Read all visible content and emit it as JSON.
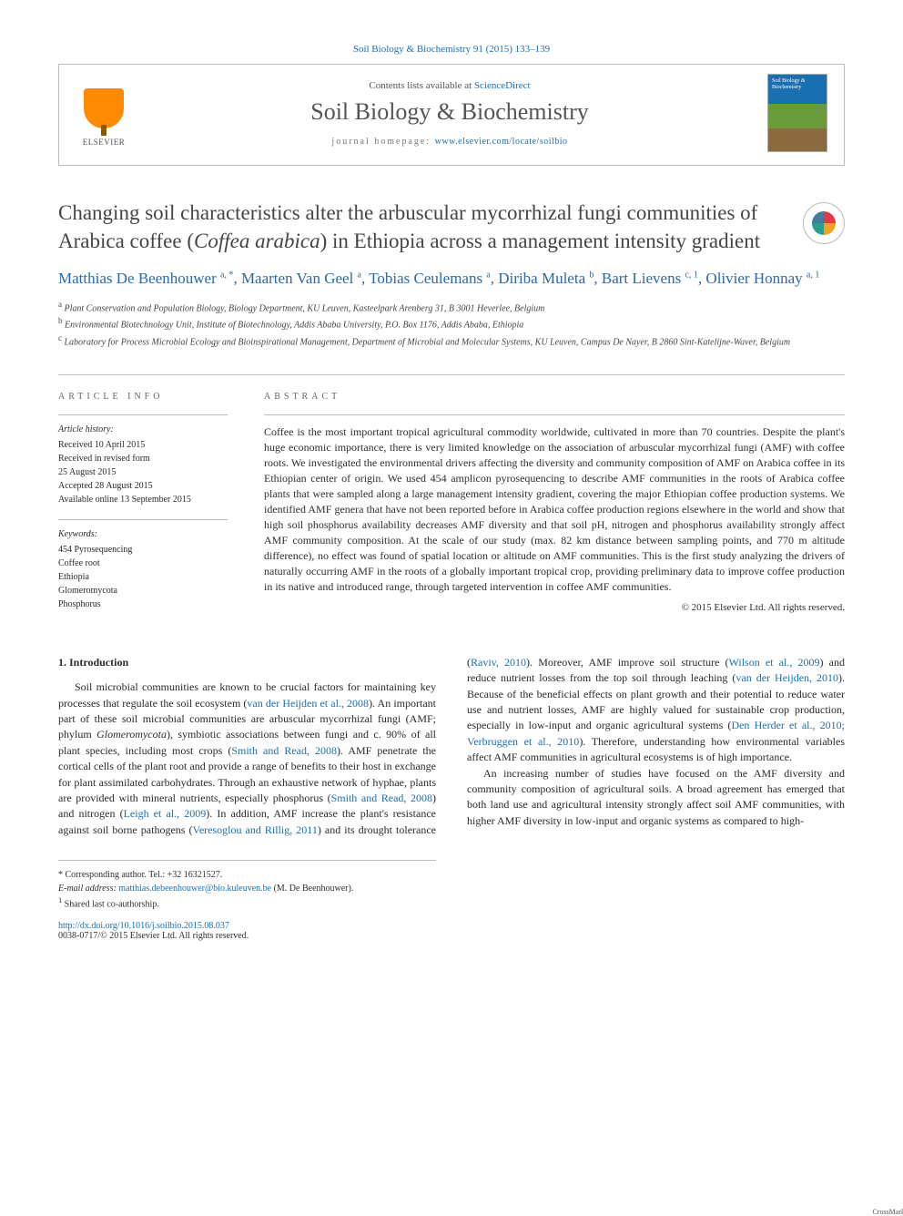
{
  "citation": "Soil Biology & Biochemistry 91 (2015) 133–139",
  "header": {
    "contents_prefix": "Contents lists available at ",
    "contents_link": "ScienceDirect",
    "journal": "Soil Biology & Biochemistry",
    "homepage_prefix": "journal homepage: ",
    "homepage_url": "www.elsevier.com/locate/soilbio",
    "publisher_brand": "ELSEVIER",
    "cover_title": "Soil Biology & Biochemistry"
  },
  "title_pre": "Changing soil characteristics alter the arbuscular mycorrhizal fungi communities of Arabica coffee (",
  "title_species": "Coffea arabica",
  "title_post": ") in Ethiopia across a management intensity gradient",
  "crossmark": "CrossMark",
  "authors": [
    {
      "name": "Matthias De Beenhouwer",
      "sup": "a, *"
    },
    {
      "name": "Maarten Van Geel",
      "sup": "a"
    },
    {
      "name": "Tobias Ceulemans",
      "sup": "a"
    },
    {
      "name": "Diriba Muleta",
      "sup": "b"
    },
    {
      "name": "Bart Lievens",
      "sup": "c, 1"
    },
    {
      "name": "Olivier Honnay",
      "sup": "a, 1"
    }
  ],
  "affiliations": [
    {
      "key": "a",
      "text": "Plant Conservation and Population Biology, Biology Department, KU Leuven, Kasteelpark Arenberg 31, B 3001 Heverlee, Belgium"
    },
    {
      "key": "b",
      "text": "Environmental Biotechnology Unit, Institute of Biotechnology, Addis Ababa University, P.O. Box 1176, Addis Ababa, Ethiopia"
    },
    {
      "key": "c",
      "text": "Laboratory for Process Microbial Ecology and Bioinspirational Management, Department of Microbial and Molecular Systems, KU Leuven, Campus De Nayer, B 2860 Sint-Katelijne-Waver, Belgium"
    }
  ],
  "article_info": {
    "label": "ARTICLE INFO",
    "history_header": "Article history:",
    "history": [
      "Received 10 April 2015",
      "Received in revised form",
      "25 August 2015",
      "Accepted 28 August 2015",
      "Available online 13 September 2015"
    ],
    "keywords_header": "Keywords:",
    "keywords": [
      "454 Pyrosequencing",
      "Coffee root",
      "Ethiopia",
      "Glomeromycota",
      "Phosphorus"
    ]
  },
  "abstract": {
    "label": "ABSTRACT",
    "text": "Coffee is the most important tropical agricultural commodity worldwide, cultivated in more than 70 countries. Despite the plant's huge economic importance, there is very limited knowledge on the association of arbuscular mycorrhizal fungi (AMF) with coffee roots. We investigated the environmental drivers affecting the diversity and community composition of AMF on Arabica coffee in its Ethiopian center of origin. We used 454 amplicon pyrosequencing to describe AMF communities in the roots of Arabica coffee plants that were sampled along a large management intensity gradient, covering the major Ethiopian coffee production systems. We identified AMF genera that have not been reported before in Arabica coffee production regions elsewhere in the world and show that high soil phosphorus availability decreases AMF diversity and that soil pH, nitrogen and phosphorus availability strongly affect AMF community composition. At the scale of our study (max. 82 km distance between sampling points, and 770 m altitude difference), no effect was found of spatial location or altitude on AMF communities. This is the first study analyzing the drivers of naturally occurring AMF in the roots of a globally important tropical crop, providing preliminary data to improve coffee production in its native and introduced range, through targeted intervention in coffee AMF communities.",
    "copyright": "© 2015 Elsevier Ltd. All rights reserved."
  },
  "intro": {
    "heading": "1.  Introduction",
    "p1_a": "Soil microbial communities are known to be crucial factors for maintaining key processes that regulate the soil ecosystem (",
    "p1_ref1": "van der Heijden et al., 2008",
    "p1_b": "). An important part of these soil microbial communities are arbuscular mycorrhizal fungi (AMF; phylum ",
    "p1_ital": "Glomeromycota",
    "p1_c": "), symbiotic associations between fungi and c. 90% of all plant species, including most crops (",
    "p1_ref2": "Smith and Read, 2008",
    "p1_d": "). AMF penetrate the cortical cells of the plant root and provide a range of benefits to their host in exchange for plant assimilated carbohydrates. Through an exhaustive network of hyphae, plants are provided with mineral nutrients, especially phosphorus (",
    "p1_ref3": "Smith",
    "p2_ref1": "and Read, 2008",
    "p2_a": ") and nitrogen (",
    "p2_ref2": "Leigh et al., 2009",
    "p2_b": "). In addition, AMF increase the plant's resistance against soil borne pathogens (",
    "p2_ref3": "Veresoglou and Rillig, 2011",
    "p2_c": ") and its drought tolerance (",
    "p2_ref4": "Raviv, 2010",
    "p2_d": "). Moreover, AMF improve soil structure (",
    "p2_ref5": "Wilson et al., 2009",
    "p2_e": ") and reduce nutrient losses from the top soil through leaching (",
    "p2_ref6": "van der Heijden, 2010",
    "p2_f": "). Because of the beneficial effects on plant growth and their potential to reduce water use and nutrient losses, AMF are highly valued for sustainable crop production, especially in low-input and organic agricultural systems (",
    "p2_ref7": "Den Herder et al., 2010; Verbruggen et al., 2010",
    "p2_g": "). Therefore, understanding how environmental variables affect AMF communities in agricultural ecosystems is of high importance.",
    "p3": "An increasing number of studies have focused on the AMF diversity and community composition of agricultural soils. A broad agreement has emerged that both land use and agricultural intensity strongly affect soil AMF communities, with higher AMF diversity in low-input and organic systems as compared to high-"
  },
  "footnotes": {
    "corr": "* Corresponding author. Tel.: +32 16321527.",
    "email_label": "E-mail address:",
    "email": "matthias.debeenhouwer@bio.kuleuven.be",
    "email_who": "(M. De Beenhouwer).",
    "shared": "Shared last co-authorship.",
    "shared_mark": "1",
    "doi": "http://dx.doi.org/10.1016/j.soilbio.2015.08.037",
    "issn": "0038-0717/© 2015 Elsevier Ltd. All rights reserved."
  },
  "colors": {
    "link": "#1a6fb0",
    "text": "#2a2a2a",
    "rule": "#bcbcbc"
  }
}
